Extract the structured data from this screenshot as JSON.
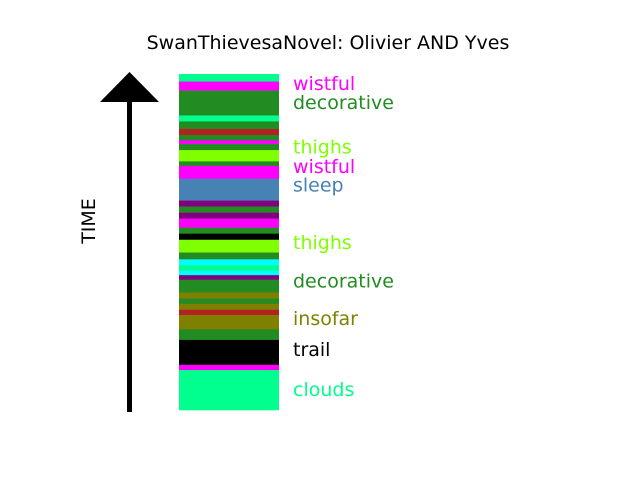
{
  "chart_data": {
    "type": "bar",
    "title": "SwanThievesaNovel: Olivier AND Yves",
    "ylabel": "TIME",
    "colors": {
      "spring": "#00ff8c",
      "magenta": "#ff00ff",
      "green": "#228b22",
      "crimson": "#b22222",
      "chartreuse": "#7fff00",
      "steelblue": "#4682b4",
      "purple": "#800080",
      "black": "#000000",
      "cyan": "#00ffff",
      "olive": "#808000"
    },
    "bands": [
      {
        "from": 0,
        "to": 1,
        "color": "spring"
      },
      {
        "from": 1,
        "to": 2.2,
        "color": "magenta"
      },
      {
        "from": 2.2,
        "to": 5.5,
        "color": "green"
      },
      {
        "from": 5.5,
        "to": 6.3,
        "color": "spring"
      },
      {
        "from": 6.3,
        "to": 7.3,
        "color": "green"
      },
      {
        "from": 7.3,
        "to": 8.1,
        "color": "crimson"
      },
      {
        "from": 8.1,
        "to": 8.8,
        "color": "green"
      },
      {
        "from": 8.8,
        "to": 9.3,
        "color": "magenta"
      },
      {
        "from": 9.3,
        "to": 10.1,
        "color": "green"
      },
      {
        "from": 10.1,
        "to": 11.6,
        "color": "chartreuse"
      },
      {
        "from": 11.6,
        "to": 12.2,
        "color": "green"
      },
      {
        "from": 12.2,
        "to": 13.9,
        "color": "magenta"
      },
      {
        "from": 13.9,
        "to": 16.8,
        "color": "steelblue"
      },
      {
        "from": 16.8,
        "to": 17.6,
        "color": "purple"
      },
      {
        "from": 17.6,
        "to": 18.4,
        "color": "green"
      },
      {
        "from": 18.4,
        "to": 19.2,
        "color": "purple"
      },
      {
        "from": 19.2,
        "to": 20.4,
        "color": "magenta"
      },
      {
        "from": 20.4,
        "to": 21.2,
        "color": "green"
      },
      {
        "from": 21.2,
        "to": 22.0,
        "color": "black"
      },
      {
        "from": 22.0,
        "to": 23.7,
        "color": "chartreuse"
      },
      {
        "from": 23.7,
        "to": 24.6,
        "color": "green"
      },
      {
        "from": 24.6,
        "to": 25.4,
        "color": "cyan"
      },
      {
        "from": 25.4,
        "to": 26.1,
        "color": "spring"
      },
      {
        "from": 26.1,
        "to": 26.7,
        "color": "cyan"
      },
      {
        "from": 26.7,
        "to": 27.3,
        "color": "purple"
      },
      {
        "from": 27.3,
        "to": 29.0,
        "color": "green"
      },
      {
        "from": 29.0,
        "to": 29.8,
        "color": "olive"
      },
      {
        "from": 29.8,
        "to": 30.5,
        "color": "green"
      },
      {
        "from": 30.5,
        "to": 31.3,
        "color": "olive"
      },
      {
        "from": 31.3,
        "to": 32.0,
        "color": "crimson"
      },
      {
        "from": 32.0,
        "to": 33.9,
        "color": "olive"
      },
      {
        "from": 33.9,
        "to": 35.3,
        "color": "green"
      },
      {
        "from": 35.3,
        "to": 38.6,
        "color": "black"
      },
      {
        "from": 38.6,
        "to": 39.3,
        "color": "magenta"
      },
      {
        "from": 39.3,
        "to": 44.6,
        "color": "spring"
      }
    ],
    "total": 44.6,
    "labels": [
      {
        "text": "wistful",
        "at": 1.2,
        "color": "magenta"
      },
      {
        "text": "decorative",
        "at": 3.7,
        "color": "green"
      },
      {
        "text": "thighs",
        "at": 9.6,
        "color": "chartreuse"
      },
      {
        "text": "wistful",
        "at": 12.2,
        "color": "magenta"
      },
      {
        "text": "sleep",
        "at": 14.7,
        "color": "steelblue"
      },
      {
        "text": "thighs",
        "at": 22.3,
        "color": "chartreuse"
      },
      {
        "text": "decorative",
        "at": 27.4,
        "color": "green"
      },
      {
        "text": "insofar",
        "at": 32.4,
        "color": "olive"
      },
      {
        "text": "trail",
        "at": 36.5,
        "color": "black"
      },
      {
        "text": "clouds",
        "at": 41.8,
        "color": "spring"
      }
    ]
  }
}
